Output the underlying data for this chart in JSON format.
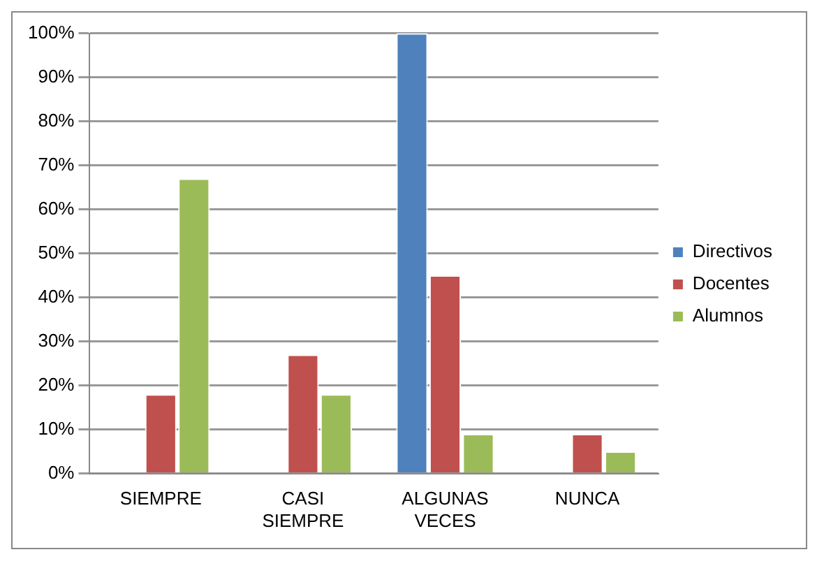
{
  "chart_data": {
    "type": "bar",
    "categories": [
      "SIEMPRE",
      "CASI SIEMPRE",
      "ALGUNAS VECES",
      "NUNCA"
    ],
    "series": [
      {
        "name": "Directivos",
        "color": "#4f81bd",
        "values": [
          0,
          0,
          100,
          0
        ]
      },
      {
        "name": "Docentes",
        "color": "#c0504d",
        "values": [
          18,
          27,
          45,
          9
        ]
      },
      {
        "name": "Alumnos",
        "color": "#9bbb59",
        "values": [
          67,
          18,
          9,
          5
        ]
      }
    ],
    "ylim": [
      0,
      100
    ],
    "yticks": [
      {
        "value": 0,
        "label": "0%"
      },
      {
        "value": 10,
        "label": "10%"
      },
      {
        "value": 20,
        "label": "20%"
      },
      {
        "value": 30,
        "label": "30%"
      },
      {
        "value": 40,
        "label": "40%"
      },
      {
        "value": 50,
        "label": "50%"
      },
      {
        "value": 60,
        "label": "60%"
      },
      {
        "value": 70,
        "label": "70%"
      },
      {
        "value": 80,
        "label": "80%"
      },
      {
        "value": 90,
        "label": "90%"
      },
      {
        "value": 100,
        "label": "100%"
      }
    ],
    "grid": "y",
    "legend": "right"
  }
}
